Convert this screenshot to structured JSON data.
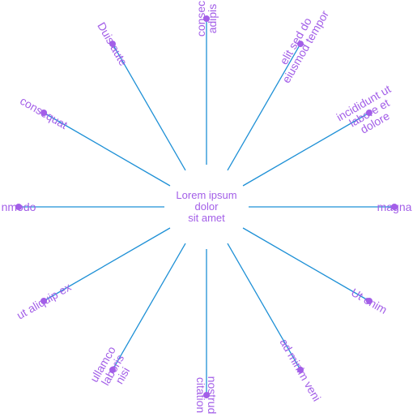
{
  "diagram": {
    "type": "radial",
    "center": {
      "lines": [
        "Lorem ipsum",
        "dolor",
        "sit amet"
      ]
    },
    "spokes": [
      {
        "lines": [
          "consec",
          "adipis"
        ]
      },
      {
        "lines": [
          "elit sed do",
          "eiusmod tempor"
        ]
      },
      {
        "lines": [
          "incididunt ut",
          "labore et",
          "dolore"
        ]
      },
      {
        "lines": [
          "magna"
        ]
      },
      {
        "lines": [
          "Ut enim"
        ]
      },
      {
        "lines": [
          "ad minim veni"
        ]
      },
      {
        "lines": [
          "nostrud",
          "citation"
        ]
      },
      {
        "lines": [
          "ullamco",
          "laboris",
          "nisi"
        ]
      },
      {
        "lines": [
          "ut aliquip ex"
        ]
      },
      {
        "lines": [
          "nmodo"
        ]
      },
      {
        "lines": [
          "consequat"
        ]
      },
      {
        "lines": [
          "Duis aute"
        ]
      }
    ],
    "colors": {
      "line": "#1e90d6",
      "text": "#a35fe8",
      "dot": "#a35fe8"
    }
  }
}
